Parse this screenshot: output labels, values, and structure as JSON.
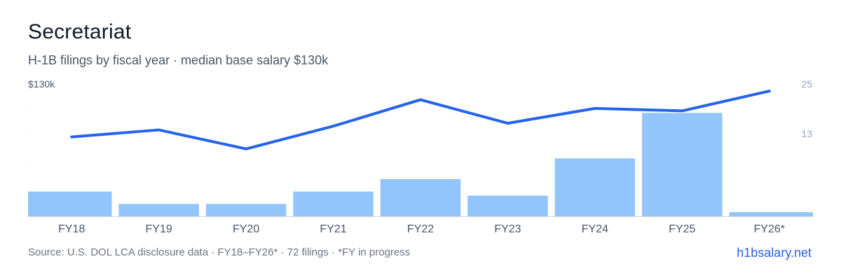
{
  "header": {
    "title": "Secretariat",
    "subtitle": "H-1B filings by fiscal year · median base salary $130k"
  },
  "footer": {
    "source": "Source: U.S. DOL LCA disclosure data · FY18–FY26* · 72 filings · *FY in progress",
    "link": "h1bsalary.net"
  },
  "colors": {
    "bar": "#93c5fd",
    "line": "#2563eb",
    "axis": "#d1d5db",
    "tick_text": "#4b5563",
    "right_tick_text": "#94a3b8"
  },
  "chart_data": {
    "type": "bar",
    "title": "Secretariat",
    "categories": [
      "FY18",
      "FY19",
      "FY20",
      "FY21",
      "FY22",
      "FY23",
      "FY24",
      "FY25",
      "FY26*"
    ],
    "series": [
      {
        "type": "bar",
        "values": [
          6,
          3,
          3,
          6,
          9,
          5,
          14,
          25,
          1
        ]
      },
      {
        "type": "line",
        "values": [
          19.2,
          20.9,
          16.3,
          21.8,
          28.2,
          22.5,
          26.1,
          25.5,
          30.3
        ]
      }
    ],
    "y_left_label": "$130k",
    "y_right_ticks": [
      {
        "value": 25,
        "label": "25"
      },
      {
        "value": 13,
        "label": "13"
      }
    ],
    "ylim": [
      0,
      32
    ]
  }
}
